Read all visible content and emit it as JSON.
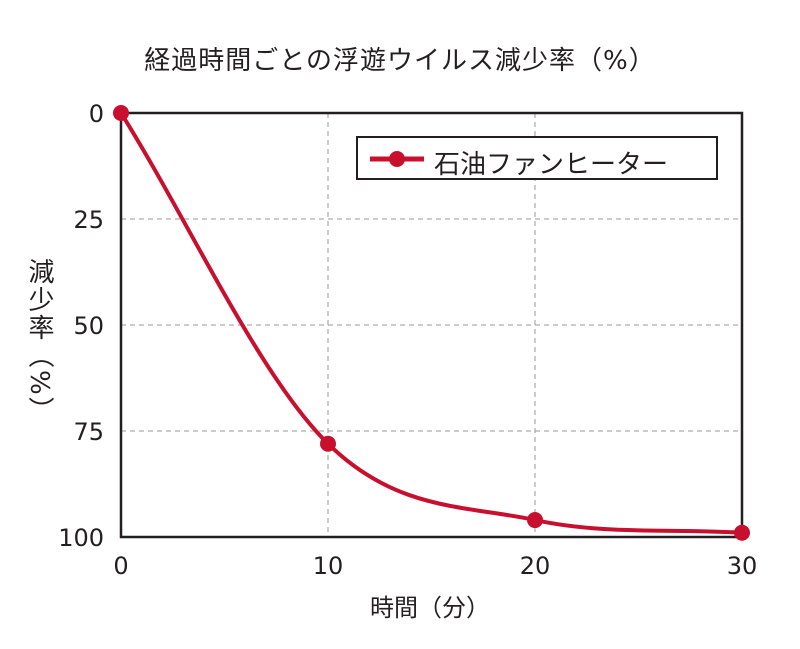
{
  "chart_data": {
    "type": "line",
    "title": "経過時間ごとの浮遊ウイルス減少率（%）",
    "xlabel": "時間（分）",
    "ylabel": "減少率（%）",
    "x": [
      0,
      10,
      20,
      30
    ],
    "series": [
      {
        "name": "石油ファンヒーター",
        "values": [
          0,
          78,
          96,
          99
        ],
        "color": "#c8102e"
      }
    ],
    "xlim": [
      0,
      30
    ],
    "ylim": [
      0,
      100
    ],
    "y_inverted": true,
    "xticks": [
      "0",
      "10",
      "20",
      "30"
    ],
    "yticks": [
      "0",
      "25",
      "50",
      "75",
      "100"
    ],
    "grid": true,
    "grid_style": "dashed",
    "legend_position": "top-right"
  }
}
